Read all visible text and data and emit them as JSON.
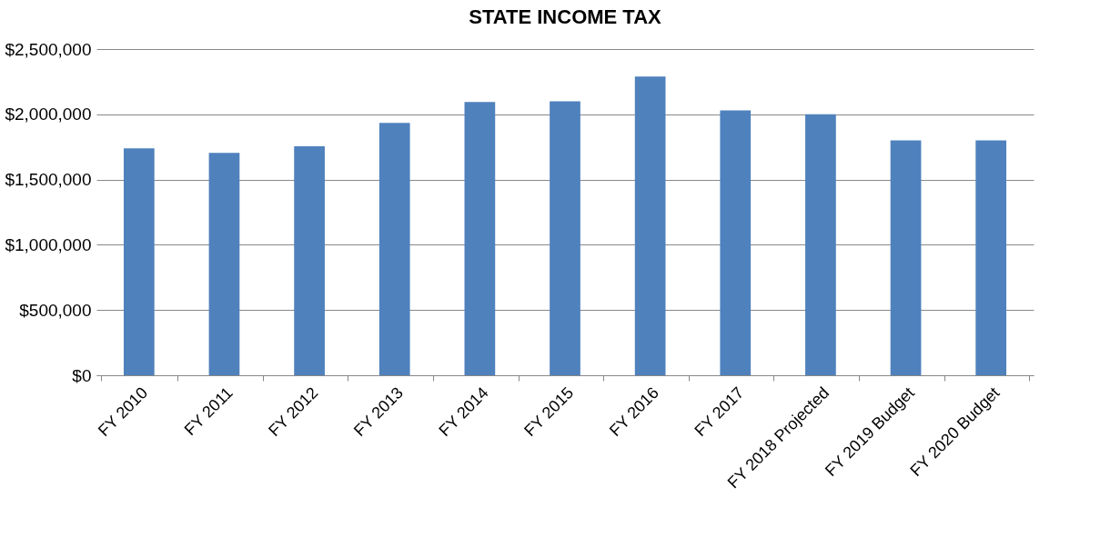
{
  "chart_data": {
    "type": "bar",
    "title": "STATE INCOME TAX",
    "categories": [
      "FY 2010",
      "FY 2011",
      "FY 2012",
      "FY 2013",
      "FY 2014",
      "FY 2015",
      "FY 2016",
      "FY 2017",
      "FY 2018 Projected",
      "FY 2019 Budget",
      "FY 2020 Budget"
    ],
    "values": [
      1740000,
      1705000,
      1755000,
      1935000,
      2095000,
      2100000,
      2290000,
      2030000,
      2000000,
      1800000,
      1800000
    ],
    "color": "#4f81bd",
    "ylim": [
      0,
      2500000
    ],
    "yticks": [
      {
        "value": 0,
        "label": "$0"
      },
      {
        "value": 500000,
        "label": "$500,000"
      },
      {
        "value": 1000000,
        "label": "$1,000,000"
      },
      {
        "value": 1500000,
        "label": "$1,500,000"
      },
      {
        "value": 2000000,
        "label": "$2,000,000"
      },
      {
        "value": 2500000,
        "label": "$2,500,000"
      }
    ],
    "grid": "y"
  }
}
